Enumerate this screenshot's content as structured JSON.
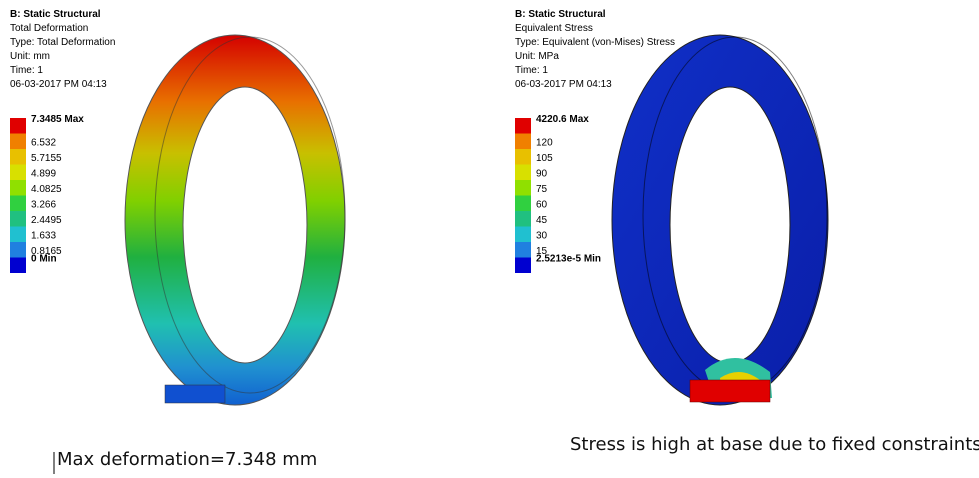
{
  "panels": [
    {
      "header": [
        "B: Static Structural",
        "Total Deformation",
        "Type: Total Deformation",
        "Unit: mm",
        "Time: 1",
        "06-03-2017 PM 04:13"
      ],
      "legend": [
        "7.3485 Max",
        "6.532",
        "5.7155",
        "4.899",
        "4.0825",
        "3.266",
        "2.4495",
        "1.633",
        "0.8165",
        "0 Min"
      ],
      "caption": "Max deformation=7.348 mm"
    },
    {
      "header": [
        "B: Static Structural",
        "Equivalent Stress",
        "Type: Equivalent (von-Mises) Stress",
        "Unit: MPa",
        "Time: 1",
        "06-03-2017 PM 04:13"
      ],
      "legend": [
        "4220.6 Max",
        "120",
        "105",
        "90",
        "75",
        "60",
        "45",
        "30",
        "15",
        "2.5213e-5 Min"
      ],
      "caption": "Stress is high at base due to fixed constraints"
    }
  ],
  "legend_colors": [
    "#e00000",
    "#f08000",
    "#e8c000",
    "#d8e000",
    "#90e000",
    "#30d040",
    "#20c080",
    "#20c0d0",
    "#2080e0",
    "#0000d0"
  ]
}
